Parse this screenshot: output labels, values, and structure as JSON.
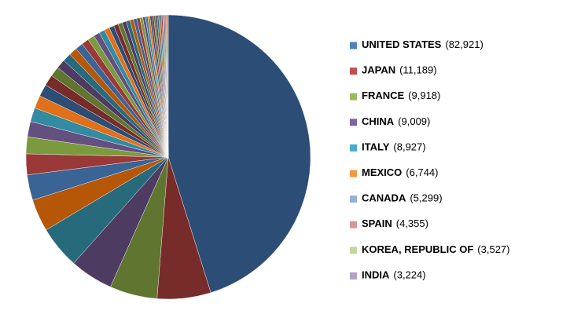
{
  "chart_data": {
    "type": "pie",
    "categories": [
      "UNITED STATES",
      "JAPAN",
      "FRANCE",
      "CHINA",
      "ITALY",
      "MEXICO",
      "CANADA",
      "SPAIN",
      "KOREA, REPUBLIC OF",
      "INDIA",
      null,
      null,
      null,
      null,
      null,
      null,
      null,
      null,
      null,
      null,
      null,
      null,
      null,
      null,
      null,
      null,
      null,
      null,
      null,
      null,
      null,
      null,
      null,
      null,
      null,
      null,
      null,
      null,
      null,
      null,
      null,
      null,
      null,
      null,
      null,
      null,
      null,
      null,
      null,
      null
    ],
    "values": [
      82921,
      11189,
      9918,
      9009,
      8927,
      6744,
      5299,
      4355,
      3527,
      3224,
      2900,
      2700,
      2500,
      2300,
      2100,
      1900,
      1800,
      1700,
      1600,
      1500,
      1400,
      1300,
      1200,
      1100,
      1000,
      950,
      900,
      850,
      800,
      750,
      700,
      650,
      600,
      550,
      500,
      450,
      400,
      380,
      360,
      340,
      320,
      300,
      280,
      260,
      240,
      220,
      200,
      180,
      160,
      150
    ],
    "value_labels": [
      "(82,921)",
      "(11,189)",
      "(9,918)",
      "(9,009)",
      "(8,927)",
      "(6,744)",
      "(5,299)",
      "(4,355)",
      "(3,527)",
      "(3,224)",
      null,
      null,
      null,
      null,
      null,
      null,
      null,
      null,
      null,
      null,
      null,
      null,
      null,
      null,
      null,
      null,
      null,
      null,
      null,
      null,
      null,
      null,
      null,
      null,
      null,
      null,
      null,
      null,
      null,
      null,
      null,
      null,
      null,
      null,
      null,
      null,
      null,
      null,
      null,
      null
    ],
    "palette": [
      "#2c4d75",
      "#772c2a",
      "#5f7530",
      "#4d3b62",
      "#276a7c",
      "#b65708",
      "#3a6396",
      "#9a3937",
      "#7b9a3e",
      "#64507f",
      "#338ba2",
      "#e0701a"
    ],
    "legend_colors": [
      "#4f81bd",
      "#c0504d",
      "#9bbb59",
      "#8064a2",
      "#4bacc6",
      "#f79646",
      "#95b3d7",
      "#d99694",
      "#c3d69b",
      "#b3a2c7"
    ]
  }
}
